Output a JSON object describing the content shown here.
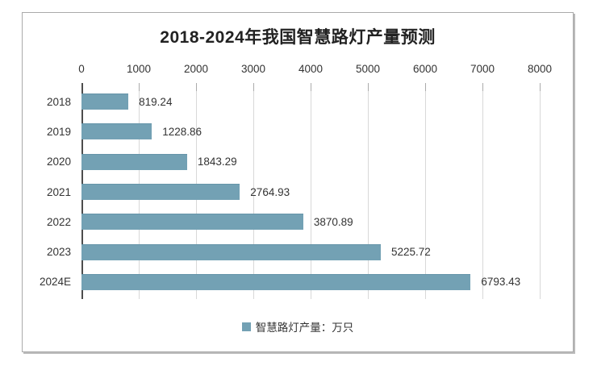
{
  "chart_data": {
    "type": "bar",
    "orientation": "horizontal",
    "title": "2018-2024年我国智慧路灯产量预测",
    "categories": [
      "2018",
      "2019",
      "2020",
      "2021",
      "2022",
      "2023",
      "2024E"
    ],
    "series": [
      {
        "name": "智慧路灯产量：万只",
        "values": [
          819.24,
          1228.86,
          1843.29,
          2764.93,
          3870.89,
          5225.72,
          6793.43
        ]
      }
    ],
    "value_labels": [
      "819.24",
      "1228.86",
      "1843.29",
      "2764.93",
      "3870.89",
      "5225.72",
      "6793.43"
    ],
    "xlim": [
      0,
      8000
    ],
    "x_ticks": [
      "0",
      "1000",
      "2000",
      "3000",
      "4000",
      "5000",
      "6000",
      "7000",
      "8000"
    ],
    "axis_position": "top",
    "grid": "vertical",
    "legend": {
      "label": "智慧路灯产量：万只",
      "position": "bottom"
    },
    "colors": {
      "bar": "#73a1b4",
      "title_text": "#222222",
      "axis_text": "#333333",
      "gridline": "#d8d8d8",
      "axis_line": "#4d4d4d",
      "frame_border": "#aaaaaa"
    }
  }
}
